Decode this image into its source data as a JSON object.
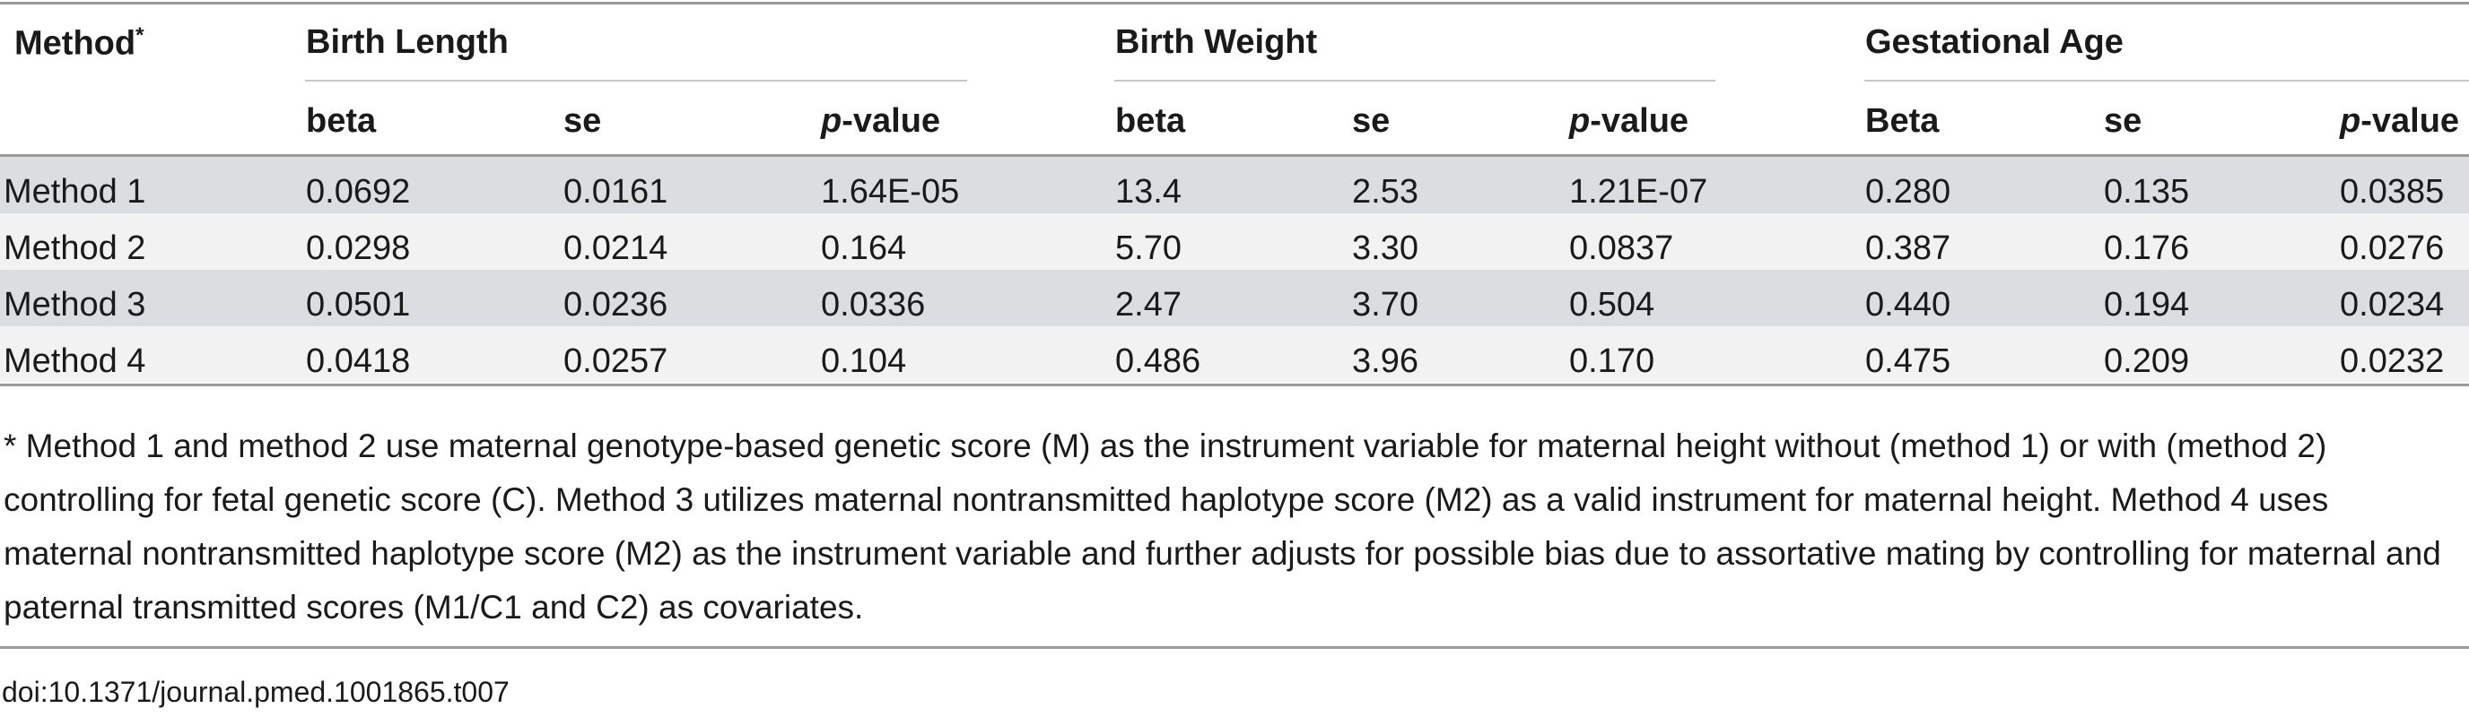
{
  "header": {
    "method_label": "Method",
    "method_sup": "*",
    "groups": [
      "Birth Length",
      "Birth Weight",
      "Gestational Age"
    ],
    "subcols": [
      [
        "beta",
        "se",
        "-value"
      ],
      [
        "beta",
        "se",
        "-value"
      ],
      [
        "Beta",
        "se",
        "-value"
      ]
    ],
    "p_italic": "p"
  },
  "rows": [
    {
      "method": "Method 1",
      "values": [
        "0.0692",
        "0.0161",
        "1.64E-05",
        "13.4",
        "2.53",
        "1.21E-07",
        "0.280",
        "0.135",
        "0.0385"
      ]
    },
    {
      "method": "Method 2",
      "values": [
        "0.0298",
        "0.0214",
        "0.164",
        "5.70",
        "3.30",
        "0.0837",
        "0.387",
        "0.176",
        "0.0276"
      ]
    },
    {
      "method": "Method 3",
      "values": [
        "0.0501",
        "0.0236",
        "0.0336",
        "2.47",
        "3.70",
        "0.504",
        "0.440",
        "0.194",
        "0.0234"
      ]
    },
    {
      "method": "Method 4",
      "values": [
        "0.0418",
        "0.0257",
        "0.104",
        "0.486",
        "3.96",
        "0.170",
        "0.475",
        "0.209",
        "0.0232"
      ]
    }
  ],
  "footnote": "* Method 1 and method 2 use maternal genotype-based genetic score (M) as the instrument variable for maternal height without (method 1) or with (method 2) controlling for fetal genetic score (C). Method 3 utilizes maternal nontransmitted haplotype score (M2) as a valid instrument for maternal height. Method 4 uses maternal nontransmitted haplotype score (M2) as the instrument variable and further adjusts for possible bias due to assortative mating by controlling for maternal and paternal transmitted scores (M1/C1 and C2) as covariates.",
  "doi": "doi:10.1371/journal.pmed.1001865.t007"
}
